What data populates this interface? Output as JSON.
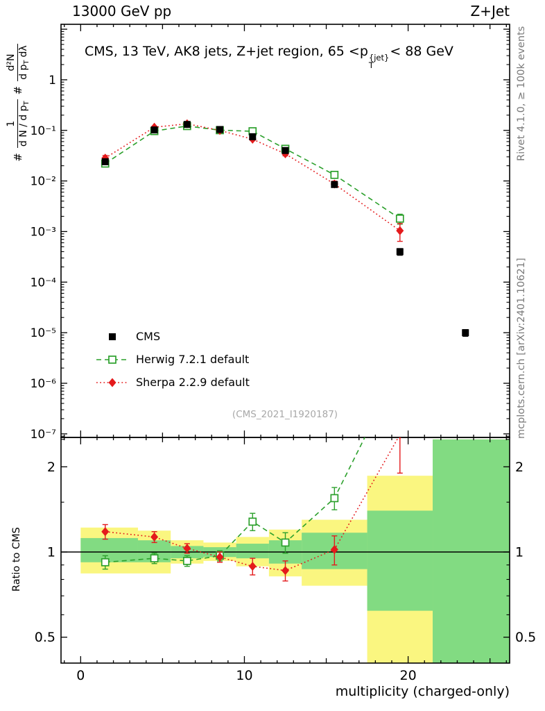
{
  "header": {
    "left": "13000 GeV pp",
    "right": "Z+Jet"
  },
  "panel_title": {
    "prefix": "CMS, 13 TeV, AK8 jets, Z+jet region, 65 <p",
    "sup": "{jet}",
    "sub": "T",
    "suffix": "< 88 GeV"
  },
  "right_captions": {
    "top": "Rivet 4.1.0, ≥ 100k events",
    "bottom": "mcplots.cern.ch [arXiv:2401.10621]"
  },
  "watermark": "(CMS_2021_I1920187)",
  "ylabel": {
    "hash1": "#",
    "n1": "1",
    "d1a": "d N / d p",
    "d1sub": "T",
    "hash2": "#",
    "n2": "d²N",
    "d2a": "d p",
    "d2sub": "T",
    "d2b": "dλ"
  },
  "ratio_ylabel": "Ratio to CMS",
  "xlabel": "multiplicity (charged-only)",
  "chart_data": {
    "type": "scatter",
    "title": "CMS, 13 TeV, AK8 jets, Z+jet region, 65 <pT{jet}< 88 GeV",
    "xlabel": "multiplicity (charged-only)",
    "ylabel": "# 1/(dN/dpT) # d²N/(dpT dλ)",
    "xlim": [
      -1.2,
      26.2
    ],
    "x_major_ticks": [
      0,
      10,
      20
    ],
    "grid": false,
    "legend_position": "left-middle",
    "main": {
      "yscale": "log",
      "ylim": [
        8.5e-08,
        12.5
      ],
      "yticks": [
        {
          "v": 1,
          "label": "1"
        },
        {
          "v": 0.1,
          "label": "10⁻¹"
        },
        {
          "v": 0.01,
          "label": "10⁻²"
        },
        {
          "v": 0.001,
          "label": "10⁻³"
        },
        {
          "v": 0.0001,
          "label": "10⁻⁴"
        },
        {
          "v": 1e-05,
          "label": "10⁻⁵"
        },
        {
          "v": 1e-06,
          "label": "10⁻⁶"
        },
        {
          "v": 1e-07,
          "label": "10⁻⁷"
        }
      ]
    },
    "ratio": {
      "yscale": "log",
      "ylim": [
        0.405,
        2.54
      ],
      "baseline": 1,
      "yticks": [
        {
          "v": 0.5,
          "label": "0.5"
        },
        {
          "v": 1,
          "label": "1"
        },
        {
          "v": 2,
          "label": "2"
        }
      ],
      "minor_yticks": [
        0.4,
        0.6,
        0.7,
        0.8,
        0.9,
        1.5,
        2.5
      ],
      "bands": [
        {
          "xlo": 0,
          "xhi": 3.5,
          "yellow": [
            0.84,
            1.22
          ],
          "green": [
            0.92,
            1.12
          ]
        },
        {
          "xlo": 3.5,
          "xhi": 5.5,
          "yellow": [
            0.84,
            1.19
          ],
          "green": [
            0.92,
            1.1
          ]
        },
        {
          "xlo": 5.5,
          "xhi": 7.5,
          "yellow": [
            0.91,
            1.1
          ],
          "green": [
            0.95,
            1.05
          ]
        },
        {
          "xlo": 7.5,
          "xhi": 9.5,
          "yellow": [
            0.93,
            1.08
          ],
          "green": [
            0.96,
            1.04
          ]
        },
        {
          "xlo": 9.5,
          "xhi": 11.5,
          "yellow": [
            0.89,
            1.13
          ],
          "green": [
            0.95,
            1.07
          ]
        },
        {
          "xlo": 11.5,
          "xhi": 13.5,
          "yellow": [
            0.82,
            1.2
          ],
          "green": [
            0.91,
            1.1
          ]
        },
        {
          "xlo": 13.5,
          "xhi": 17.5,
          "yellow": [
            0.76,
            1.3
          ],
          "green": [
            0.87,
            1.17
          ]
        },
        {
          "xlo": 17.5,
          "xhi": 21.5,
          "yellow": [
            0.4,
            1.86
          ],
          "green": [
            0.62,
            1.4
          ]
        },
        {
          "xlo": 21.5,
          "xhi": 26.2,
          "yellow": [
            0.37,
            2.5
          ],
          "green": [
            0.37,
            2.5
          ]
        }
      ]
    },
    "band_colors": {
      "yellow": "#faf680",
      "green": "#82db82"
    },
    "series": [
      {
        "name": "CMS",
        "color": "#000000",
        "marker": "square-filled",
        "line": "none",
        "in_ratio": false,
        "x": [
          1.5,
          4.5,
          6.5,
          8.5,
          10.5,
          12.5,
          15.5,
          19.5,
          23.5
        ],
        "y": [
          0.024,
          0.102,
          0.131,
          0.104,
          0.075,
          0.04,
          0.0085,
          0.0004,
          1e-05
        ],
        "yerr": [
          0.002,
          0.004,
          0.004,
          0.004,
          0.003,
          0.002,
          0.0008,
          6e-05,
          1.5e-06
        ]
      },
      {
        "name": "Herwig 7.2.1 default",
        "color": "#2ca02c",
        "marker": "square-open",
        "line": "dashed",
        "in_ratio": true,
        "x": [
          1.5,
          4.5,
          6.5,
          8.5,
          10.5,
          12.5,
          15.5,
          19.5
        ],
        "y": [
          0.0221,
          0.0969,
          0.1218,
          0.1009,
          0.096,
          0.0432,
          0.0132,
          0.0018
        ],
        "yerr": [
          0.0018,
          0.003,
          0.003,
          0.003,
          0.004,
          0.0028,
          0.0013,
          0.0004
        ],
        "ratio": [
          0.92,
          0.95,
          0.93,
          0.97,
          1.28,
          1.08,
          1.55,
          4.5
        ],
        "ratio_err": [
          0.05,
          0.04,
          0.04,
          0.04,
          0.09,
          0.09,
          0.14,
          0.9
        ]
      },
      {
        "name": "Sherpa 2.2.9 default",
        "color": "#e41a1c",
        "marker": "diamond-filled",
        "line": "dotted",
        "in_ratio": true,
        "x": [
          1.5,
          4.5,
          6.5,
          8.5,
          10.5,
          12.5,
          15.5,
          19.5
        ],
        "y": [
          0.0283,
          0.1153,
          0.1349,
          0.0998,
          0.0668,
          0.0344,
          0.0087,
          0.00104
        ],
        "yerr": [
          0.0035,
          0.0035,
          0.0035,
          0.003,
          0.004,
          0.003,
          0.0012,
          0.0004
        ],
        "ratio": [
          1.18,
          1.13,
          1.03,
          0.96,
          0.89,
          0.86,
          1.02,
          2.6
        ],
        "ratio_err": [
          0.07,
          0.05,
          0.04,
          0.04,
          0.06,
          0.07,
          0.12,
          0.7
        ]
      }
    ]
  }
}
